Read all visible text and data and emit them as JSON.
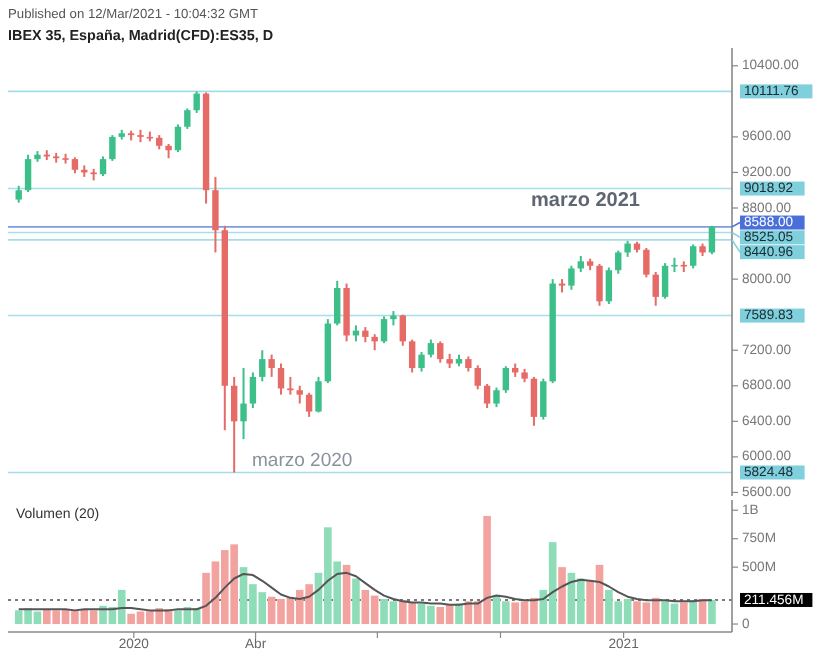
{
  "chart_data": [
    {
      "type": "candlestick",
      "title": "IBEX 35, España, Madrid(CFD):ES35, D",
      "annotations": [
        "Published on 12/Mar/2021 - 10:04:32 GMT",
        "marzo 2020",
        "marzo 2021"
      ],
      "x": [
        "2019-10-07",
        "2019-10-14",
        "2019-10-21",
        "2019-10-28",
        "2019-11-04",
        "2019-11-11",
        "2019-11-18",
        "2019-11-25",
        "2019-12-02",
        "2019-12-09",
        "2019-12-16",
        "2019-12-23",
        "2019-12-30",
        "2020-01-06",
        "2020-01-13",
        "2020-01-20",
        "2020-01-27",
        "2020-02-03",
        "2020-02-10",
        "2020-02-17",
        "2020-02-24",
        "2020-03-02",
        "2020-03-09",
        "2020-03-16",
        "2020-03-23",
        "2020-03-30",
        "2020-04-06",
        "2020-04-13",
        "2020-04-20",
        "2020-04-27",
        "2020-05-04",
        "2020-05-11",
        "2020-05-18",
        "2020-05-25",
        "2020-06-01",
        "2020-06-08",
        "2020-06-15",
        "2020-06-22",
        "2020-06-29",
        "2020-07-06",
        "2020-07-13",
        "2020-07-20",
        "2020-07-27",
        "2020-08-03",
        "2020-08-10",
        "2020-08-17",
        "2020-08-24",
        "2020-08-31",
        "2020-09-07",
        "2020-09-14",
        "2020-09-21",
        "2020-09-28",
        "2020-10-05",
        "2020-10-12",
        "2020-10-19",
        "2020-10-26",
        "2020-11-02",
        "2020-11-09",
        "2020-11-16",
        "2020-11-23",
        "2020-11-30",
        "2020-12-07",
        "2020-12-14",
        "2020-12-21",
        "2020-12-28",
        "2021-01-04",
        "2021-01-11",
        "2021-01-18",
        "2021-01-25",
        "2021-02-01",
        "2021-02-08",
        "2021-02-15",
        "2021-02-22",
        "2021-03-01",
        "2021-03-08"
      ],
      "ohlc": [
        [
          8895,
          9050,
          8860,
          9000
        ],
        [
          9000,
          9400,
          8980,
          9350
        ],
        [
          9350,
          9440,
          9320,
          9400
        ],
        [
          9400,
          9450,
          9340,
          9380
        ],
        [
          9380,
          9420,
          9310,
          9360
        ],
        [
          9360,
          9410,
          9300,
          9350
        ],
        [
          9350,
          9370,
          9190,
          9230
        ],
        [
          9230,
          9280,
          9150,
          9200
        ],
        [
          9200,
          9240,
          9110,
          9180
        ],
        [
          9180,
          9380,
          9160,
          9350
        ],
        [
          9350,
          9620,
          9330,
          9600
        ],
        [
          9600,
          9680,
          9570,
          9640
        ],
        [
          9640,
          9670,
          9560,
          9620
        ],
        [
          9620,
          9680,
          9540,
          9600
        ],
        [
          9600,
          9660,
          9550,
          9590
        ],
        [
          9590,
          9620,
          9460,
          9500
        ],
        [
          9500,
          9520,
          9360,
          9450
        ],
        [
          9450,
          9740,
          9430,
          9714
        ],
        [
          9714,
          9920,
          9690,
          9900
        ],
        [
          9900,
          10111.76,
          9870,
          10087
        ],
        [
          10087,
          10100,
          8850,
          9000
        ],
        [
          9000,
          9150,
          8300,
          8550
        ],
        [
          8550,
          8600,
          6300,
          6800
        ],
        [
          6800,
          6900,
          5824.48,
          6400
        ],
        [
          6400,
          7000,
          6200,
          6600
        ],
        [
          6600,
          6950,
          6550,
          6900
        ],
        [
          6900,
          7200,
          6850,
          7100
        ],
        [
          7100,
          7150,
          6900,
          7000
        ],
        [
          7000,
          7050,
          6700,
          6770
        ],
        [
          6770,
          6900,
          6700,
          6750
        ],
        [
          6750,
          6800,
          6600,
          6700
        ],
        [
          6700,
          6720,
          6450,
          6510
        ],
        [
          6510,
          6900,
          6500,
          6850
        ],
        [
          6850,
          7550,
          6830,
          7500
        ],
        [
          7500,
          7980,
          7480,
          7900
        ],
        [
          7900,
          7950,
          7300,
          7366
        ],
        [
          7366,
          7480,
          7300,
          7420
        ],
        [
          7420,
          7460,
          7290,
          7350
        ],
        [
          7350,
          7380,
          7200,
          7300
        ],
        [
          7300,
          7580,
          7280,
          7550
        ],
        [
          7550,
          7640,
          7480,
          7590
        ],
        [
          7590,
          7600,
          7250,
          7300
        ],
        [
          7300,
          7320,
          6950,
          7000
        ],
        [
          7000,
          7180,
          6960,
          7150
        ],
        [
          7150,
          7320,
          7120,
          7280
        ],
        [
          7280,
          7300,
          7060,
          7100
        ],
        [
          7100,
          7160,
          7000,
          7050
        ],
        [
          7050,
          7150,
          7020,
          7100
        ],
        [
          7100,
          7130,
          6960,
          7000
        ],
        [
          7000,
          7030,
          6760,
          6800
        ],
        [
          6800,
          6820,
          6550,
          6600
        ],
        [
          6600,
          6780,
          6560,
          6750
        ],
        [
          6750,
          7020,
          6720,
          7000
        ],
        [
          7000,
          7050,
          6900,
          6950
        ],
        [
          6950,
          6990,
          6840,
          6880
        ],
        [
          6880,
          6900,
          6350,
          6450
        ],
        [
          6450,
          6880,
          6420,
          6850
        ],
        [
          6850,
          8000,
          6830,
          7950
        ],
        [
          7950,
          8000,
          7850,
          7927
        ],
        [
          7927,
          8150,
          7880,
          8120
        ],
        [
          8120,
          8260,
          8080,
          8200
        ],
        [
          8200,
          8230,
          8100,
          8150
        ],
        [
          8150,
          8170,
          7700,
          7750
        ],
        [
          7750,
          8130,
          7720,
          8100
        ],
        [
          8100,
          8320,
          8060,
          8300
        ],
        [
          8300,
          8430,
          8250,
          8400
        ],
        [
          8400,
          8420,
          8300,
          8330
        ],
        [
          8330,
          8350,
          8020,
          8050
        ],
        [
          8050,
          8080,
          7700,
          7800
        ],
        [
          7800,
          8180,
          7780,
          8150
        ],
        [
          8150,
          8240,
          8080,
          8160
        ],
        [
          8160,
          8200,
          8080,
          8150
        ],
        [
          8150,
          8390,
          8120,
          8370
        ],
        [
          8370,
          8400,
          8260,
          8300
        ],
        [
          8300,
          8600,
          8280,
          8588
        ]
      ],
      "colors": [
        "#3dbf8a",
        "#3dbf8a",
        "#3dbf8a",
        "#e66a66",
        "#e66a66",
        "#e66a66",
        "#e66a66",
        "#e66a66",
        "#e66a66",
        "#3dbf8a",
        "#3dbf8a",
        "#3dbf8a",
        "#e66a66",
        "#e66a66",
        "#e66a66",
        "#e66a66",
        "#e66a66",
        "#3dbf8a",
        "#3dbf8a",
        "#3dbf8a",
        "#e66a66",
        "#e66a66",
        "#e66a66",
        "#e66a66",
        "#3dbf8a",
        "#3dbf8a",
        "#3dbf8a",
        "#e66a66",
        "#e66a66",
        "#e66a66",
        "#e66a66",
        "#e66a66",
        "#3dbf8a",
        "#3dbf8a",
        "#3dbf8a",
        "#e66a66",
        "#3dbf8a",
        "#e66a66",
        "#e66a66",
        "#3dbf8a",
        "#3dbf8a",
        "#e66a66",
        "#e66a66",
        "#3dbf8a",
        "#3dbf8a",
        "#e66a66",
        "#e66a66",
        "#3dbf8a",
        "#e66a66",
        "#e66a66",
        "#e66a66",
        "#3dbf8a",
        "#3dbf8a",
        "#e66a66",
        "#e66a66",
        "#e66a66",
        "#3dbf8a",
        "#3dbf8a",
        "#e66a66",
        "#3dbf8a",
        "#3dbf8a",
        "#e66a66",
        "#e66a66",
        "#3dbf8a",
        "#3dbf8a",
        "#3dbf8a",
        "#e66a66",
        "#e66a66",
        "#e66a66",
        "#3dbf8a",
        "#3dbf8a",
        "#e66a66",
        "#3dbf8a",
        "#e66a66",
        "#3dbf8a"
      ],
      "xlim": [
        "2019-09-29",
        "2021-03-23"
      ],
      "ylim": [
        5560,
        10600
      ],
      "yticks": [
        {
          "value": 5600,
          "label": "5600.00"
        },
        {
          "value": 6000,
          "label": "6000.00"
        },
        {
          "value": 6400,
          "label": "6400.00"
        },
        {
          "value": 6800,
          "label": "6800.00"
        },
        {
          "value": 7200,
          "label": "7200.00"
        },
        {
          "value": 8000,
          "label": "8000.00"
        },
        {
          "value": 8800,
          "label": "8800.00"
        },
        {
          "value": 9200,
          "label": "9200.00"
        },
        {
          "value": 9600,
          "label": "9600.00"
        },
        {
          "value": 10400,
          "label": "10400.00"
        }
      ],
      "tick_labels": "y",
      "ref_lines": [
        {
          "axis": "y",
          "value": 10111.76,
          "label": "10111.76",
          "color": "#7fd0dc"
        },
        {
          "axis": "y",
          "value": 9018.92,
          "label": "9018.92",
          "color": "#7fd0dc"
        },
        {
          "axis": "y",
          "value": 8588,
          "label": "8588.00",
          "color": "#4a6fd8"
        },
        {
          "axis": "y",
          "value": 8525.05,
          "label": "8525.05",
          "color": "#7fd0dc"
        },
        {
          "axis": "y",
          "value": 8440.96,
          "label": "8440.96",
          "color": "#7fd0dc"
        },
        {
          "axis": "y",
          "value": 7589.83,
          "label": "7589.83",
          "color": "#7fd0dc"
        },
        {
          "axis": "y",
          "value": 5824.48,
          "label": "5824.48",
          "color": "#7fd0dc"
        }
      ]
    },
    {
      "type": "bar",
      "title": "Volumen (20)",
      "x": [
        "2019-10-07",
        "2019-10-14",
        "2019-10-21",
        "2019-10-28",
        "2019-11-04",
        "2019-11-11",
        "2019-11-18",
        "2019-11-25",
        "2019-12-02",
        "2019-12-09",
        "2019-12-16",
        "2019-12-23",
        "2019-12-30",
        "2020-01-06",
        "2020-01-13",
        "2020-01-20",
        "2020-01-27",
        "2020-02-03",
        "2020-02-10",
        "2020-02-17",
        "2020-02-24",
        "2020-03-02",
        "2020-03-09",
        "2020-03-16",
        "2020-03-23",
        "2020-03-30",
        "2020-04-06",
        "2020-04-13",
        "2020-04-20",
        "2020-04-27",
        "2020-05-04",
        "2020-05-11",
        "2020-05-18",
        "2020-05-25",
        "2020-06-01",
        "2020-06-08",
        "2020-06-15",
        "2020-06-22",
        "2020-06-29",
        "2020-07-06",
        "2020-07-13",
        "2020-07-20",
        "2020-07-27",
        "2020-08-03",
        "2020-08-10",
        "2020-08-17",
        "2020-08-24",
        "2020-08-31",
        "2020-09-07",
        "2020-09-14",
        "2020-09-21",
        "2020-09-28",
        "2020-10-05",
        "2020-10-12",
        "2020-10-19",
        "2020-10-26",
        "2020-11-02",
        "2020-11-09",
        "2020-11-16",
        "2020-11-23",
        "2020-11-30",
        "2020-12-07",
        "2020-12-14",
        "2020-12-21",
        "2020-12-28",
        "2021-01-04",
        "2021-01-11",
        "2021-01-18",
        "2021-01-25",
        "2021-02-01",
        "2021-02-08",
        "2021-02-15",
        "2021-02-22",
        "2021-03-01",
        "2021-03-08"
      ],
      "series": [
        {
          "values": [
            120000000,
            140000000,
            110000000,
            130000000,
            120000000,
            130000000,
            120000000,
            130000000,
            120000000,
            160000000,
            150000000,
            300000000,
            90000000,
            110000000,
            120000000,
            140000000,
            130000000,
            120000000,
            150000000,
            140000000,
            450000000,
            550000000,
            650000000,
            700000000,
            500000000,
            350000000,
            280000000,
            240000000,
            220000000,
            230000000,
            300000000,
            350000000,
            450000000,
            850000000,
            550000000,
            520000000,
            400000000,
            300000000,
            250000000,
            220000000,
            200000000,
            210000000,
            190000000,
            180000000,
            160000000,
            150000000,
            170000000,
            180000000,
            200000000,
            200000000,
            950000000,
            250000000,
            200000000,
            190000000,
            200000000,
            230000000,
            300000000,
            720000000,
            500000000,
            450000000,
            400000000,
            380000000,
            520000000,
            300000000,
            200000000,
            220000000,
            200000000,
            190000000,
            230000000,
            200000000,
            180000000,
            190000000,
            210000000,
            220000000,
            211456000
          ],
          "colors": [
            "#8fdcb8",
            "#8fdcb8",
            "#8fdcb8",
            "#f2a3a0",
            "#f2a3a0",
            "#f2a3a0",
            "#f2a3a0",
            "#f2a3a0",
            "#f2a3a0",
            "#8fdcb8",
            "#8fdcb8",
            "#8fdcb8",
            "#f2a3a0",
            "#f2a3a0",
            "#f2a3a0",
            "#f2a3a0",
            "#f2a3a0",
            "#8fdcb8",
            "#8fdcb8",
            "#8fdcb8",
            "#f2a3a0",
            "#f2a3a0",
            "#f2a3a0",
            "#f2a3a0",
            "#8fdcb8",
            "#8fdcb8",
            "#8fdcb8",
            "#f2a3a0",
            "#f2a3a0",
            "#f2a3a0",
            "#f2a3a0",
            "#f2a3a0",
            "#8fdcb8",
            "#8fdcb8",
            "#8fdcb8",
            "#f2a3a0",
            "#8fdcb8",
            "#f2a3a0",
            "#f2a3a0",
            "#8fdcb8",
            "#8fdcb8",
            "#f2a3a0",
            "#f2a3a0",
            "#8fdcb8",
            "#8fdcb8",
            "#f2a3a0",
            "#f2a3a0",
            "#8fdcb8",
            "#f2a3a0",
            "#f2a3a0",
            "#f2a3a0",
            "#8fdcb8",
            "#8fdcb8",
            "#f2a3a0",
            "#f2a3a0",
            "#f2a3a0",
            "#8fdcb8",
            "#8fdcb8",
            "#f2a3a0",
            "#8fdcb8",
            "#8fdcb8",
            "#f2a3a0",
            "#f2a3a0",
            "#8fdcb8",
            "#8fdcb8",
            "#8fdcb8",
            "#f2a3a0",
            "#f2a3a0",
            "#f2a3a0",
            "#8fdcb8",
            "#8fdcb8",
            "#f2a3a0",
            "#8fdcb8",
            "#f2a3a0",
            "#8fdcb8"
          ]
        },
        {
          "type": "line",
          "color": "#555555",
          "values": [
            130000000,
            130000000,
            130000000,
            130000000,
            130000000,
            130000000,
            120000000,
            130000000,
            130000000,
            130000000,
            130000000,
            140000000,
            140000000,
            130000000,
            120000000,
            120000000,
            120000000,
            130000000,
            130000000,
            130000000,
            160000000,
            230000000,
            320000000,
            400000000,
            440000000,
            430000000,
            380000000,
            320000000,
            260000000,
            230000000,
            220000000,
            240000000,
            300000000,
            380000000,
            440000000,
            450000000,
            420000000,
            360000000,
            300000000,
            250000000,
            220000000,
            200000000,
            190000000,
            190000000,
            180000000,
            180000000,
            170000000,
            170000000,
            180000000,
            180000000,
            230000000,
            250000000,
            240000000,
            220000000,
            210000000,
            210000000,
            220000000,
            280000000,
            330000000,
            370000000,
            390000000,
            380000000,
            370000000,
            330000000,
            280000000,
            240000000,
            220000000,
            210000000,
            210000000,
            210000000,
            200000000,
            200000000,
            200000000,
            210000000,
            210000000
          ]
        }
      ],
      "xlim": [
        "2019-09-29",
        "2021-03-23"
      ],
      "xticks": [
        {
          "value": "2020-01-01",
          "label": "2020"
        },
        {
          "value": "2020-04-01",
          "label": "Abr"
        },
        {
          "value": "2020-07-01",
          "label": null
        },
        {
          "value": "2020-10-01",
          "label": null
        },
        {
          "value": "2021-01-01",
          "label": "2021"
        }
      ],
      "ylim": [
        -70000000,
        1090000000
      ],
      "yticks": [
        0,
        {
          "value": 500000000,
          "label": "500M"
        },
        {
          "value": 750000000,
          "label": "750M"
        },
        {
          "value": 1000000000,
          "label": "1B"
        }
      ],
      "ref_lines": [
        {
          "axis": "y",
          "value": 211456000,
          "label": "211.456M",
          "color": "#000000",
          "line_style": "dotted"
        }
      ]
    }
  ]
}
